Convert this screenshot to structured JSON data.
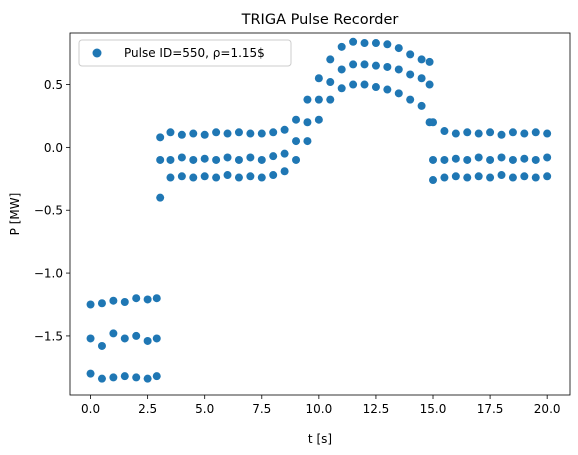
{
  "chart_data": {
    "type": "scatter",
    "title": "TRIGA Pulse Recorder",
    "xlabel": "t [s]",
    "ylabel": "P [MW]",
    "xlim": [
      -0.9,
      21.0
    ],
    "ylim": [
      -1.97,
      0.91
    ],
    "xticks": [
      0.0,
      2.5,
      5.0,
      7.5,
      10.0,
      12.5,
      15.0,
      17.5,
      20.0
    ],
    "xtick_labels": [
      "0.0",
      "2.5",
      "5.0",
      "7.5",
      "10.0",
      "12.5",
      "15.0",
      "17.5",
      "20.0"
    ],
    "yticks": [
      -1.5,
      -1.0,
      -0.5,
      0.0,
      0.5
    ],
    "ytick_labels": [
      "−1.5",
      "−1.0",
      "−0.5",
      "0.0",
      "0.5"
    ],
    "grid": false,
    "legend_position": "upper-left",
    "series": [
      {
        "name": "Pulse ID=550, ρ=1.15$",
        "color": "#1f77b4",
        "points": [
          [
            0.0,
            -1.52
          ],
          [
            0.0,
            -1.25
          ],
          [
            0.0,
            -1.8
          ],
          [
            0.5,
            -1.58
          ],
          [
            0.5,
            -1.24
          ],
          [
            0.5,
            -1.84
          ],
          [
            1.0,
            -1.48
          ],
          [
            1.0,
            -1.22
          ],
          [
            1.0,
            -1.83
          ],
          [
            1.5,
            -1.52
          ],
          [
            1.5,
            -1.23
          ],
          [
            1.5,
            -1.82
          ],
          [
            2.0,
            -1.5
          ],
          [
            2.0,
            -1.2
          ],
          [
            2.0,
            -1.83
          ],
          [
            2.5,
            -1.54
          ],
          [
            2.5,
            -1.21
          ],
          [
            2.5,
            -1.84
          ],
          [
            2.9,
            -1.52
          ],
          [
            2.9,
            -1.2
          ],
          [
            2.9,
            -1.82
          ],
          [
            3.05,
            -0.1
          ],
          [
            3.05,
            0.08
          ],
          [
            3.05,
            -0.4
          ],
          [
            3.5,
            -0.1
          ],
          [
            3.5,
            0.12
          ],
          [
            3.5,
            -0.24
          ],
          [
            4.0,
            -0.08
          ],
          [
            4.0,
            0.1
          ],
          [
            4.0,
            -0.23
          ],
          [
            4.5,
            -0.1
          ],
          [
            4.5,
            0.11
          ],
          [
            4.5,
            -0.24
          ],
          [
            5.0,
            -0.09
          ],
          [
            5.0,
            0.1
          ],
          [
            5.0,
            -0.23
          ],
          [
            5.5,
            -0.1
          ],
          [
            5.5,
            0.12
          ],
          [
            5.5,
            -0.24
          ],
          [
            6.0,
            -0.08
          ],
          [
            6.0,
            0.11
          ],
          [
            6.0,
            -0.22
          ],
          [
            6.5,
            -0.1
          ],
          [
            6.5,
            0.12
          ],
          [
            6.5,
            -0.24
          ],
          [
            7.0,
            -0.08
          ],
          [
            7.0,
            0.11
          ],
          [
            7.0,
            -0.23
          ],
          [
            7.5,
            -0.1
          ],
          [
            7.5,
            0.11
          ],
          [
            7.5,
            -0.24
          ],
          [
            8.0,
            -0.07
          ],
          [
            8.0,
            0.12
          ],
          [
            8.0,
            -0.22
          ],
          [
            8.5,
            -0.05
          ],
          [
            8.5,
            0.14
          ],
          [
            8.5,
            -0.19
          ],
          [
            9.0,
            0.05
          ],
          [
            9.0,
            0.22
          ],
          [
            9.0,
            -0.1
          ],
          [
            9.5,
            0.2
          ],
          [
            9.5,
            0.38
          ],
          [
            9.5,
            0.05
          ],
          [
            10.0,
            0.38
          ],
          [
            10.0,
            0.55
          ],
          [
            10.0,
            0.22
          ],
          [
            10.5,
            0.52
          ],
          [
            10.5,
            0.7
          ],
          [
            10.5,
            0.38
          ],
          [
            11.0,
            0.62
          ],
          [
            11.0,
            0.8
          ],
          [
            11.0,
            0.47
          ],
          [
            11.5,
            0.66
          ],
          [
            11.5,
            0.84
          ],
          [
            11.5,
            0.5
          ],
          [
            12.0,
            0.66
          ],
          [
            12.0,
            0.83
          ],
          [
            12.0,
            0.5
          ],
          [
            12.5,
            0.65
          ],
          [
            12.5,
            0.83
          ],
          [
            12.5,
            0.48
          ],
          [
            13.0,
            0.64
          ],
          [
            13.0,
            0.82
          ],
          [
            13.0,
            0.46
          ],
          [
            13.5,
            0.62
          ],
          [
            13.5,
            0.79
          ],
          [
            13.5,
            0.43
          ],
          [
            14.0,
            0.58
          ],
          [
            14.0,
            0.74
          ],
          [
            14.0,
            0.38
          ],
          [
            14.5,
            0.55
          ],
          [
            14.5,
            0.7
          ],
          [
            14.5,
            0.33
          ],
          [
            14.85,
            0.5
          ],
          [
            14.85,
            0.68
          ],
          [
            14.85,
            0.2
          ],
          [
            15.0,
            -0.1
          ],
          [
            15.0,
            0.2
          ],
          [
            15.0,
            -0.26
          ],
          [
            15.5,
            -0.1
          ],
          [
            15.5,
            0.13
          ],
          [
            15.5,
            -0.24
          ],
          [
            16.0,
            -0.09
          ],
          [
            16.0,
            0.11
          ],
          [
            16.0,
            -0.23
          ],
          [
            16.5,
            -0.1
          ],
          [
            16.5,
            0.12
          ],
          [
            16.5,
            -0.24
          ],
          [
            17.0,
            -0.08
          ],
          [
            17.0,
            0.11
          ],
          [
            17.0,
            -0.23
          ],
          [
            17.5,
            -0.1
          ],
          [
            17.5,
            0.12
          ],
          [
            17.5,
            -0.24
          ],
          [
            18.0,
            -0.08
          ],
          [
            18.0,
            0.1
          ],
          [
            18.0,
            -0.22
          ],
          [
            18.5,
            -0.1
          ],
          [
            18.5,
            0.12
          ],
          [
            18.5,
            -0.24
          ],
          [
            19.0,
            -0.09
          ],
          [
            19.0,
            0.11
          ],
          [
            19.0,
            -0.23
          ],
          [
            19.5,
            -0.1
          ],
          [
            19.5,
            0.12
          ],
          [
            19.5,
            -0.24
          ],
          [
            20.0,
            -0.08
          ],
          [
            20.0,
            0.11
          ],
          [
            20.0,
            -0.23
          ]
        ]
      }
    ]
  }
}
